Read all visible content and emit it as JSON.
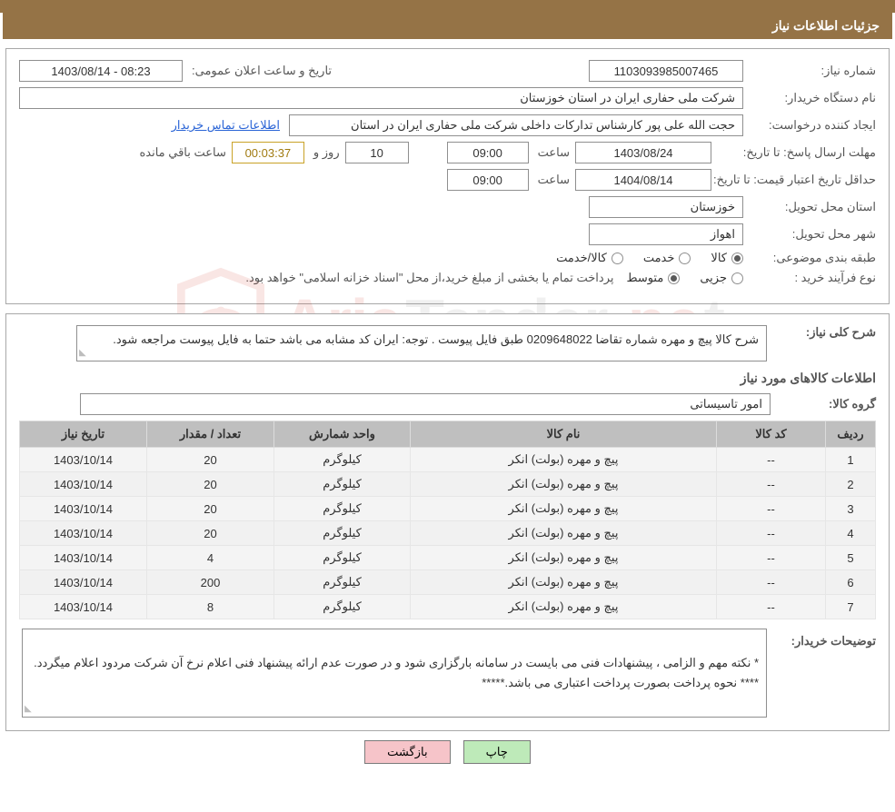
{
  "title_bar": "جزئیات اطلاعات نیاز",
  "labels": {
    "need_number": "شماره نیاز:",
    "announce_datetime": "تاریخ و ساعت اعلان عمومی:",
    "buyer_org": "نام دستگاه خریدار:",
    "requester": "ایجاد کننده درخواست:",
    "contact_link": "اطلاعات تماس خریدار",
    "deadline_prefix": "مهلت ارسال پاسخ: تا تاریخ:",
    "time_word": "ساعت",
    "days_word": "روز و",
    "remaining_word": "ساعت باقي مانده",
    "min_validity_prefix": "حداقل تاریخ اعتبار قیمت: تا تاریخ:",
    "delivery_province": "استان محل تحویل:",
    "delivery_city": "شهر محل تحویل:",
    "category": "طبقه بندی موضوعی:",
    "radios": {
      "goods": "کالا",
      "service": "خدمت",
      "goods_service": "کالا/خدمت"
    },
    "purchase_type": "نوع فرآیند خرید :",
    "radios2": {
      "minor": "جزیی",
      "medium": "متوسط"
    },
    "purchase_note": "پرداخت تمام یا بخشی از مبلغ خرید،از محل \"اسناد خزانه اسلامی\" خواهد بود.",
    "general_desc": "شرح کلی نیاز:",
    "items_section": "اطلاعات کالاهای مورد نیاز",
    "goods_group": "گروه کالا:",
    "buyer_remarks": "توضیحات خریدار:",
    "btn_print": "چاپ",
    "btn_back": "بازگشت"
  },
  "values": {
    "need_number": "1103093985007465",
    "announce_datetime": "1403/08/14 - 08:23",
    "buyer_org": "شرکت ملی حفاری ایران در استان خوزستان",
    "requester": "حجت الله علی پور کارشناس تدارکات داخلی شرکت ملی حفاری ایران در استان",
    "deadline_date": "1403/08/24",
    "deadline_time": "09:00",
    "deadline_days": "10",
    "countdown": "00:03:37",
    "min_validity_date": "1404/08/14",
    "min_validity_time": "09:00",
    "province": "خوزستان",
    "city": "اهواز",
    "selected_radio1": "goods",
    "selected_radio2": "medium",
    "general_desc": "شرح کالا پیچ و مهره   شماره تقاضا 0209648022 طبق فایل پیوست . توجه: ایران کد مشابه می باشد حتما به فایل پیوست مراجعه شود.",
    "goods_group": "امور تاسیساتی",
    "buyer_remarks": "*  نکته مهم و الزامی ، پیشنهادات فنی می بایست در سامانه بارگزاری شود و در صورت عدم ارائه پیشنهاد فنی اعلام نرخ آن شرکت مردود اعلام میگردد.\n****       نحوه پرداخت بصورت پرداخت اعتباری می باشد.*****"
  },
  "table": {
    "headers": {
      "idx": "ردیف",
      "code": "کد کالا",
      "name": "نام کالا",
      "unit": "واحد شمارش",
      "qty": "تعداد / مقدار",
      "need_date": "تاریخ نیاز"
    },
    "rows": [
      {
        "idx": "1",
        "code": "--",
        "name": "پیچ و مهره (بولت) انکر",
        "unit": "کیلوگرم",
        "qty": "20",
        "need_date": "1403/10/14"
      },
      {
        "idx": "2",
        "code": "--",
        "name": "پیچ و مهره (بولت) انکر",
        "unit": "کیلوگرم",
        "qty": "20",
        "need_date": "1403/10/14"
      },
      {
        "idx": "3",
        "code": "--",
        "name": "پیچ و مهره (بولت) انکر",
        "unit": "کیلوگرم",
        "qty": "20",
        "need_date": "1403/10/14"
      },
      {
        "idx": "4",
        "code": "--",
        "name": "پیچ و مهره (بولت) انکر",
        "unit": "کیلوگرم",
        "qty": "20",
        "need_date": "1403/10/14"
      },
      {
        "idx": "5",
        "code": "--",
        "name": "پیچ و مهره (بولت) انکر",
        "unit": "کیلوگرم",
        "qty": "4",
        "need_date": "1403/10/14"
      },
      {
        "idx": "6",
        "code": "--",
        "name": "پیچ و مهره (بولت) انکر",
        "unit": "کیلوگرم",
        "qty": "200",
        "need_date": "1403/10/14"
      },
      {
        "idx": "7",
        "code": "--",
        "name": "پیچ و مهره (بولت) انکر",
        "unit": "کیلوگرم",
        "qty": "8",
        "need_date": "1403/10/14"
      }
    ]
  },
  "watermark": {
    "prefix": "Aria",
    "mid": "Tender",
    "suffix": ".ne",
    "tail": "t",
    "shield_color": "#d43c2e"
  },
  "colors": {
    "brand_bar": "#957346",
    "border": "#8f8f8f",
    "th_bg": "#bfbfbf",
    "td_bg": "#f4f4f4",
    "link": "#2a64d6",
    "btn_print": "#beeab9",
    "btn_back": "#f6c4c9"
  }
}
